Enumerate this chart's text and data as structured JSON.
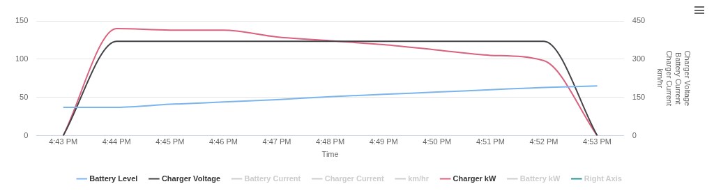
{
  "chart_data": {
    "type": "line",
    "xlabel": "Time",
    "y2label": "Charger Voltage\nBattery Current\nCharger Current\nkm/hr",
    "categories": [
      "4:43 PM",
      "4:44 PM",
      "4:45 PM",
      "4:46 PM",
      "4:47 PM",
      "4:48 PM",
      "4:49 PM",
      "4:50 PM",
      "4:51 PM",
      "4:52 PM",
      "4:53 PM"
    ],
    "series": [
      {
        "name": "Battery Level",
        "color": "#7cb5ec",
        "values": [
          37,
          37,
          41,
          44,
          47,
          51,
          54,
          57,
          60,
          63,
          65
        ]
      },
      {
        "name": "Charger Voltage",
        "color": "#434348",
        "axis": "y2",
        "values": [
          0,
          370,
          370,
          370,
          370,
          370,
          370,
          370,
          370,
          370,
          0
        ]
      },
      {
        "name": "Battery Current",
        "color": "#cccccc",
        "values": [
          null,
          null,
          null,
          null,
          null,
          null,
          null,
          null,
          null,
          null,
          null
        ]
      },
      {
        "name": "Charger Current",
        "color": "#cccccc",
        "values": [
          null,
          null,
          null,
          null,
          null,
          null,
          null,
          null,
          null,
          null,
          null
        ]
      },
      {
        "name": "km/hr",
        "color": "#cccccc",
        "values": [
          null,
          null,
          null,
          null,
          null,
          null,
          null,
          null,
          null,
          null,
          null
        ]
      },
      {
        "name": "Charger kW",
        "color": "#d9627e",
        "values": [
          0,
          140,
          138,
          138,
          129,
          124,
          119,
          112,
          105,
          98,
          0
        ]
      },
      {
        "name": "Battery kW",
        "color": "#cccccc",
        "values": [
          null,
          null,
          null,
          null,
          null,
          null,
          null,
          null,
          null,
          null,
          null
        ]
      },
      {
        "name": "Right Axis",
        "color": "#2b908f",
        "axis": "y2",
        "values": [
          null,
          null,
          null,
          null,
          null,
          null,
          null,
          null,
          null,
          null,
          null
        ]
      }
    ],
    "ylim": [
      0,
      150
    ],
    "yticks": [
      0,
      50,
      100,
      150
    ],
    "y2lim": [
      0,
      450
    ],
    "y2ticks": [
      0,
      150,
      300,
      450
    ],
    "grid": "y",
    "legend": "bottom",
    "marker": "none",
    "line_style": "solid"
  }
}
